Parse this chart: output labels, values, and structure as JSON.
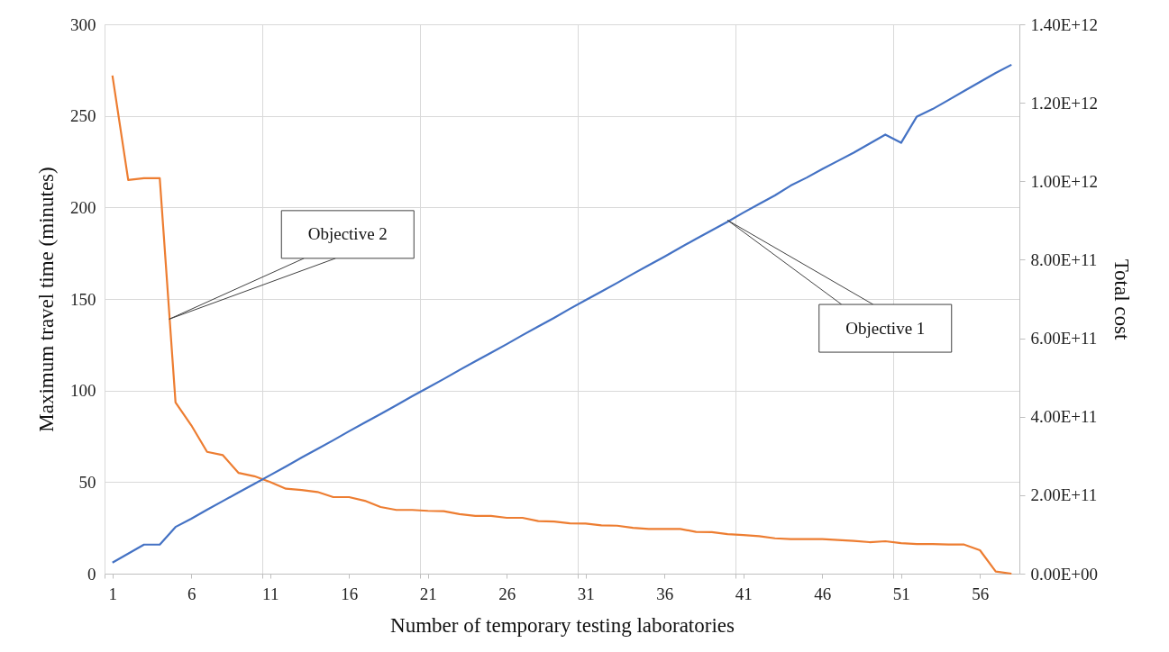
{
  "chart_data": {
    "type": "line",
    "xlabel": "Number of temporary testing laboratories",
    "ylabel": "Maximum travel time (minutes)",
    "y2label": "Total cost",
    "x": [
      1,
      2,
      3,
      4,
      5,
      6,
      7,
      8,
      9,
      10,
      11,
      12,
      13,
      14,
      15,
      16,
      17,
      18,
      19,
      20,
      21,
      22,
      23,
      24,
      25,
      26,
      27,
      28,
      29,
      30,
      31,
      32,
      33,
      34,
      35,
      36,
      37,
      38,
      39,
      40,
      41,
      42,
      43,
      44,
      45,
      46,
      47,
      48,
      49,
      50,
      51,
      52,
      53,
      54,
      55,
      56,
      57,
      58
    ],
    "series": [
      {
        "color": "#4472c4",
        "axis": "y2",
        "values": [
          28000000000.0,
          51000000000.0,
          74000000000.0,
          74000000000.0,
          119000000000.0,
          140000000000.0,
          163000000000.0,
          185000000000.0,
          207000000000.0,
          229000000000.0,
          251000000000.0,
          273000000000.0,
          296000000000.0,
          318000000000.0,
          340000000000.0,
          363000000000.0,
          385000000000.0,
          407000000000.0,
          429000000000.0,
          452000000000.0,
          474000000000.0,
          496000000000.0,
          519000000000.0,
          541000000000.0,
          563000000000.0,
          585000000000.0,
          608000000000.0,
          630000000000.0,
          652000000000.0,
          675000000000.0,
          697000000000.0,
          719000000000.0,
          741000000000.0,
          764000000000.0,
          786000000000.0,
          808000000000.0,
          831000000000.0,
          853000000000.0,
          875000000000.0,
          897000000000.0,
          920000000000.0,
          942000000000.0,
          964000000000.0,
          989000000000.0,
          1009000000000.0,
          1031000000000.0,
          1052000000000.0,
          1073000000000.0,
          1096000000000.0,
          1119000000000.0,
          1098000000000.0,
          1165000000000.0,
          1184000000000.0,
          1207000000000.0,
          1230000000000.0,
          1253000000000.0,
          1276000000000.0,
          1297000000000.0
        ]
      },
      {
        "color": "#ed7d31",
        "values": [
          272,
          215,
          216,
          216,
          93.5,
          81,
          66.5,
          64.7,
          55,
          53.2,
          50,
          46.4,
          45.7,
          44.6,
          41.8,
          41.8,
          39.8,
          36.4,
          34.8,
          34.8,
          34.3,
          34.1,
          32.5,
          31.5,
          31.5,
          30.5,
          30.5,
          28.7,
          28.5,
          27.5,
          27.4,
          26.4,
          26.2,
          25,
          24.4,
          24.4,
          24.4,
          22.8,
          22.7,
          21.6,
          21.1,
          20.5,
          19.3,
          18.9,
          18.9,
          18.9,
          18.4,
          17.9,
          17.2,
          17.7,
          16.7,
          16.2,
          16.2,
          15.9,
          15.9,
          12.8,
          1.2,
          0
        ]
      }
    ],
    "xlim": [
      0.5,
      58.5
    ],
    "xticks": [
      {
        "value": 0.5,
        "label": null
      },
      1,
      6,
      {
        "value": 10.5,
        "label": null
      },
      11,
      16,
      {
        "value": 20.5,
        "label": null
      },
      21,
      26,
      {
        "value": 30.5,
        "label": null
      },
      31,
      36,
      {
        "value": 40.5,
        "label": null
      },
      41,
      46,
      {
        "value": 50.5,
        "label": null
      },
      51,
      56
    ],
    "ylim": [
      0,
      300
    ],
    "yticks": [
      0,
      50,
      100,
      150,
      200,
      250,
      300
    ],
    "y2lim": [
      0,
      1400000000000.0
    ],
    "y2ticks": [
      {
        "value": 0,
        "label": "0.00E+00"
      },
      {
        "value": 200000000000.0,
        "label": "2.00E+11"
      },
      {
        "value": 400000000000.0,
        "label": "4.00E+11"
      },
      {
        "value": 600000000000.0,
        "label": "6.00E+11"
      },
      {
        "value": 800000000000.0,
        "label": "8.00E+11"
      },
      {
        "value": 1000000000000.0,
        "label": "1.00E+12"
      },
      {
        "value": 1200000000000.0,
        "label": "1.20E+12"
      },
      {
        "value": 1400000000000.0,
        "label": "1.40E+12"
      }
    ],
    "annotations": [
      {
        "text": "Objective 2",
        "x": 4.6,
        "y": 139
      },
      {
        "text": "Objective 1",
        "x": 40,
        "y": 193
      }
    ],
    "grid": true,
    "marker": "none",
    "line_style": "solid"
  }
}
